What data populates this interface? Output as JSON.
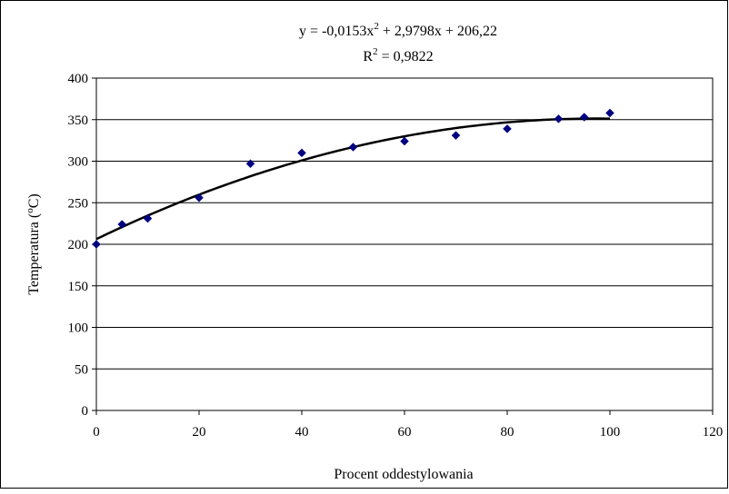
{
  "chart_data": {
    "type": "scatter",
    "xlabel": "Procent oddestylowania",
    "ylabel_base": "Temperatura (",
    "ylabel_sup": "o",
    "ylabel_end": "C)",
    "xlim": [
      0,
      120
    ],
    "ylim": [
      0,
      400
    ],
    "x_ticks": [
      0,
      20,
      40,
      60,
      80,
      100,
      120
    ],
    "y_ticks": [
      0,
      50,
      100,
      150,
      200,
      250,
      300,
      350,
      400
    ],
    "grid": "horizontal",
    "legend": "none",
    "marker_color": "#000080",
    "trendline_color": "#000000",
    "points": {
      "x": [
        0,
        5,
        10,
        20,
        30,
        40,
        50,
        60,
        70,
        80,
        90,
        95,
        100
      ],
      "y": [
        200,
        224,
        231,
        256,
        297,
        310,
        317,
        324,
        331,
        339,
        351,
        353,
        358
      ]
    },
    "trendline": {
      "type": "polynomial",
      "coefficients": [
        -0.0153,
        2.9798,
        206.22
      ],
      "x_range": [
        0,
        100
      ],
      "equation_prefix": "y = -0,0153x",
      "equation_sup": "2",
      "equation_rest": " + 2,9798x + 206,22",
      "r2_prefix": "R",
      "r2_sup": "2",
      "r2_rest": " = 0,9822"
    }
  }
}
